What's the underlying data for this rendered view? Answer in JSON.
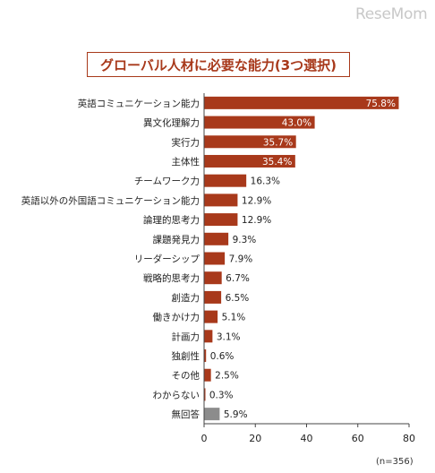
{
  "watermark": "ReseMom",
  "note": "(n=356)",
  "chart_data": {
    "type": "bar",
    "orientation": "horizontal",
    "title": "グローバル人材に必要な能力(3つ選択)",
    "categories": [
      "英語コミュニケーション能力",
      "異文化理解力",
      "実行力",
      "主体性",
      "チームワーク力",
      "英語以外の外国語コミュニケーション能力",
      "論理的思考力",
      "課題発見力",
      "リーダーシップ",
      "戦略的思考力",
      "創造力",
      "働きかけ力",
      "計画力",
      "独創性",
      "その他",
      "わからない",
      "無回答"
    ],
    "values": [
      75.8,
      43.0,
      35.7,
      35.4,
      16.3,
      12.9,
      12.9,
      9.3,
      7.9,
      6.7,
      6.5,
      5.1,
      3.1,
      0.6,
      2.5,
      0.3,
      5.9
    ],
    "value_labels": [
      "75.8%",
      "43.0%",
      "35.7%",
      "35.4%",
      "16.3%",
      "12.9%",
      "12.9%",
      "9.3%",
      "7.9%",
      "6.7%",
      "6.5%",
      "5.1%",
      "3.1%",
      "0.6%",
      "2.5%",
      "0.3%",
      "5.9%"
    ],
    "xlim": [
      0,
      80
    ],
    "xticks": [
      "0",
      "20",
      "40",
      "60",
      "80"
    ],
    "grid": false,
    "colors": {
      "bar": "#a8391b",
      "no_answer_bar": "#8c8c8c",
      "title": "#a8391b"
    }
  }
}
